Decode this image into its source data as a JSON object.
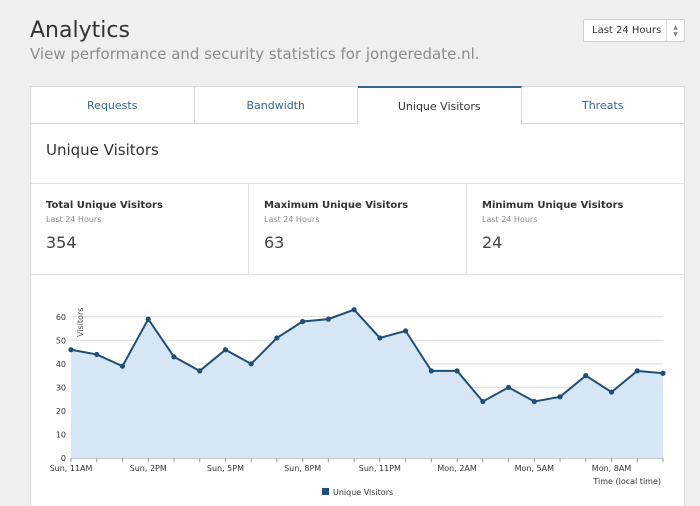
{
  "header": {
    "title": "Analytics",
    "subtitle": "View performance and security statistics for jongeredate.nl."
  },
  "time_range": {
    "selected": "Last 24 Hours"
  },
  "tabs": [
    {
      "label": "Requests",
      "active": false
    },
    {
      "label": "Bandwidth",
      "active": false
    },
    {
      "label": "Unique Visitors",
      "active": true
    },
    {
      "label": "Threats",
      "active": false
    }
  ],
  "section": {
    "title": "Unique Visitors"
  },
  "stats": [
    {
      "label": "Total Unique Visitors",
      "period": "Last 24 Hours",
      "value": "354"
    },
    {
      "label": "Maximum Unique Visitors",
      "period": "Last 24 Hours",
      "value": "63"
    },
    {
      "label": "Minimum Unique Visitors",
      "period": "Last 24 Hours",
      "value": "24"
    }
  ],
  "chart_data": {
    "type": "area",
    "ylabel": "Visitors",
    "xlabel": "Time (local time)",
    "ylim": [
      0,
      65
    ],
    "yticks": [
      0,
      10,
      20,
      30,
      40,
      50,
      60
    ],
    "grid": true,
    "legend_position": "bottom-center",
    "line_color": "#1f4e79",
    "fill_color": "#d6e6f4",
    "x_tick_labels": [
      "Sun, 11AM",
      "Sun, 2PM",
      "Sun, 5PM",
      "Sun, 8PM",
      "Sun, 11PM",
      "Mon, 2AM",
      "Mon, 5AM",
      "Mon, 8AM"
    ],
    "series": [
      {
        "name": "Unique Visitors",
        "values": [
          46,
          44,
          39,
          59,
          43,
          37,
          46,
          40,
          51,
          58,
          59,
          63,
          51,
          54,
          37,
          37,
          24,
          30,
          24,
          26,
          35,
          28,
          37,
          36
        ]
      }
    ]
  }
}
